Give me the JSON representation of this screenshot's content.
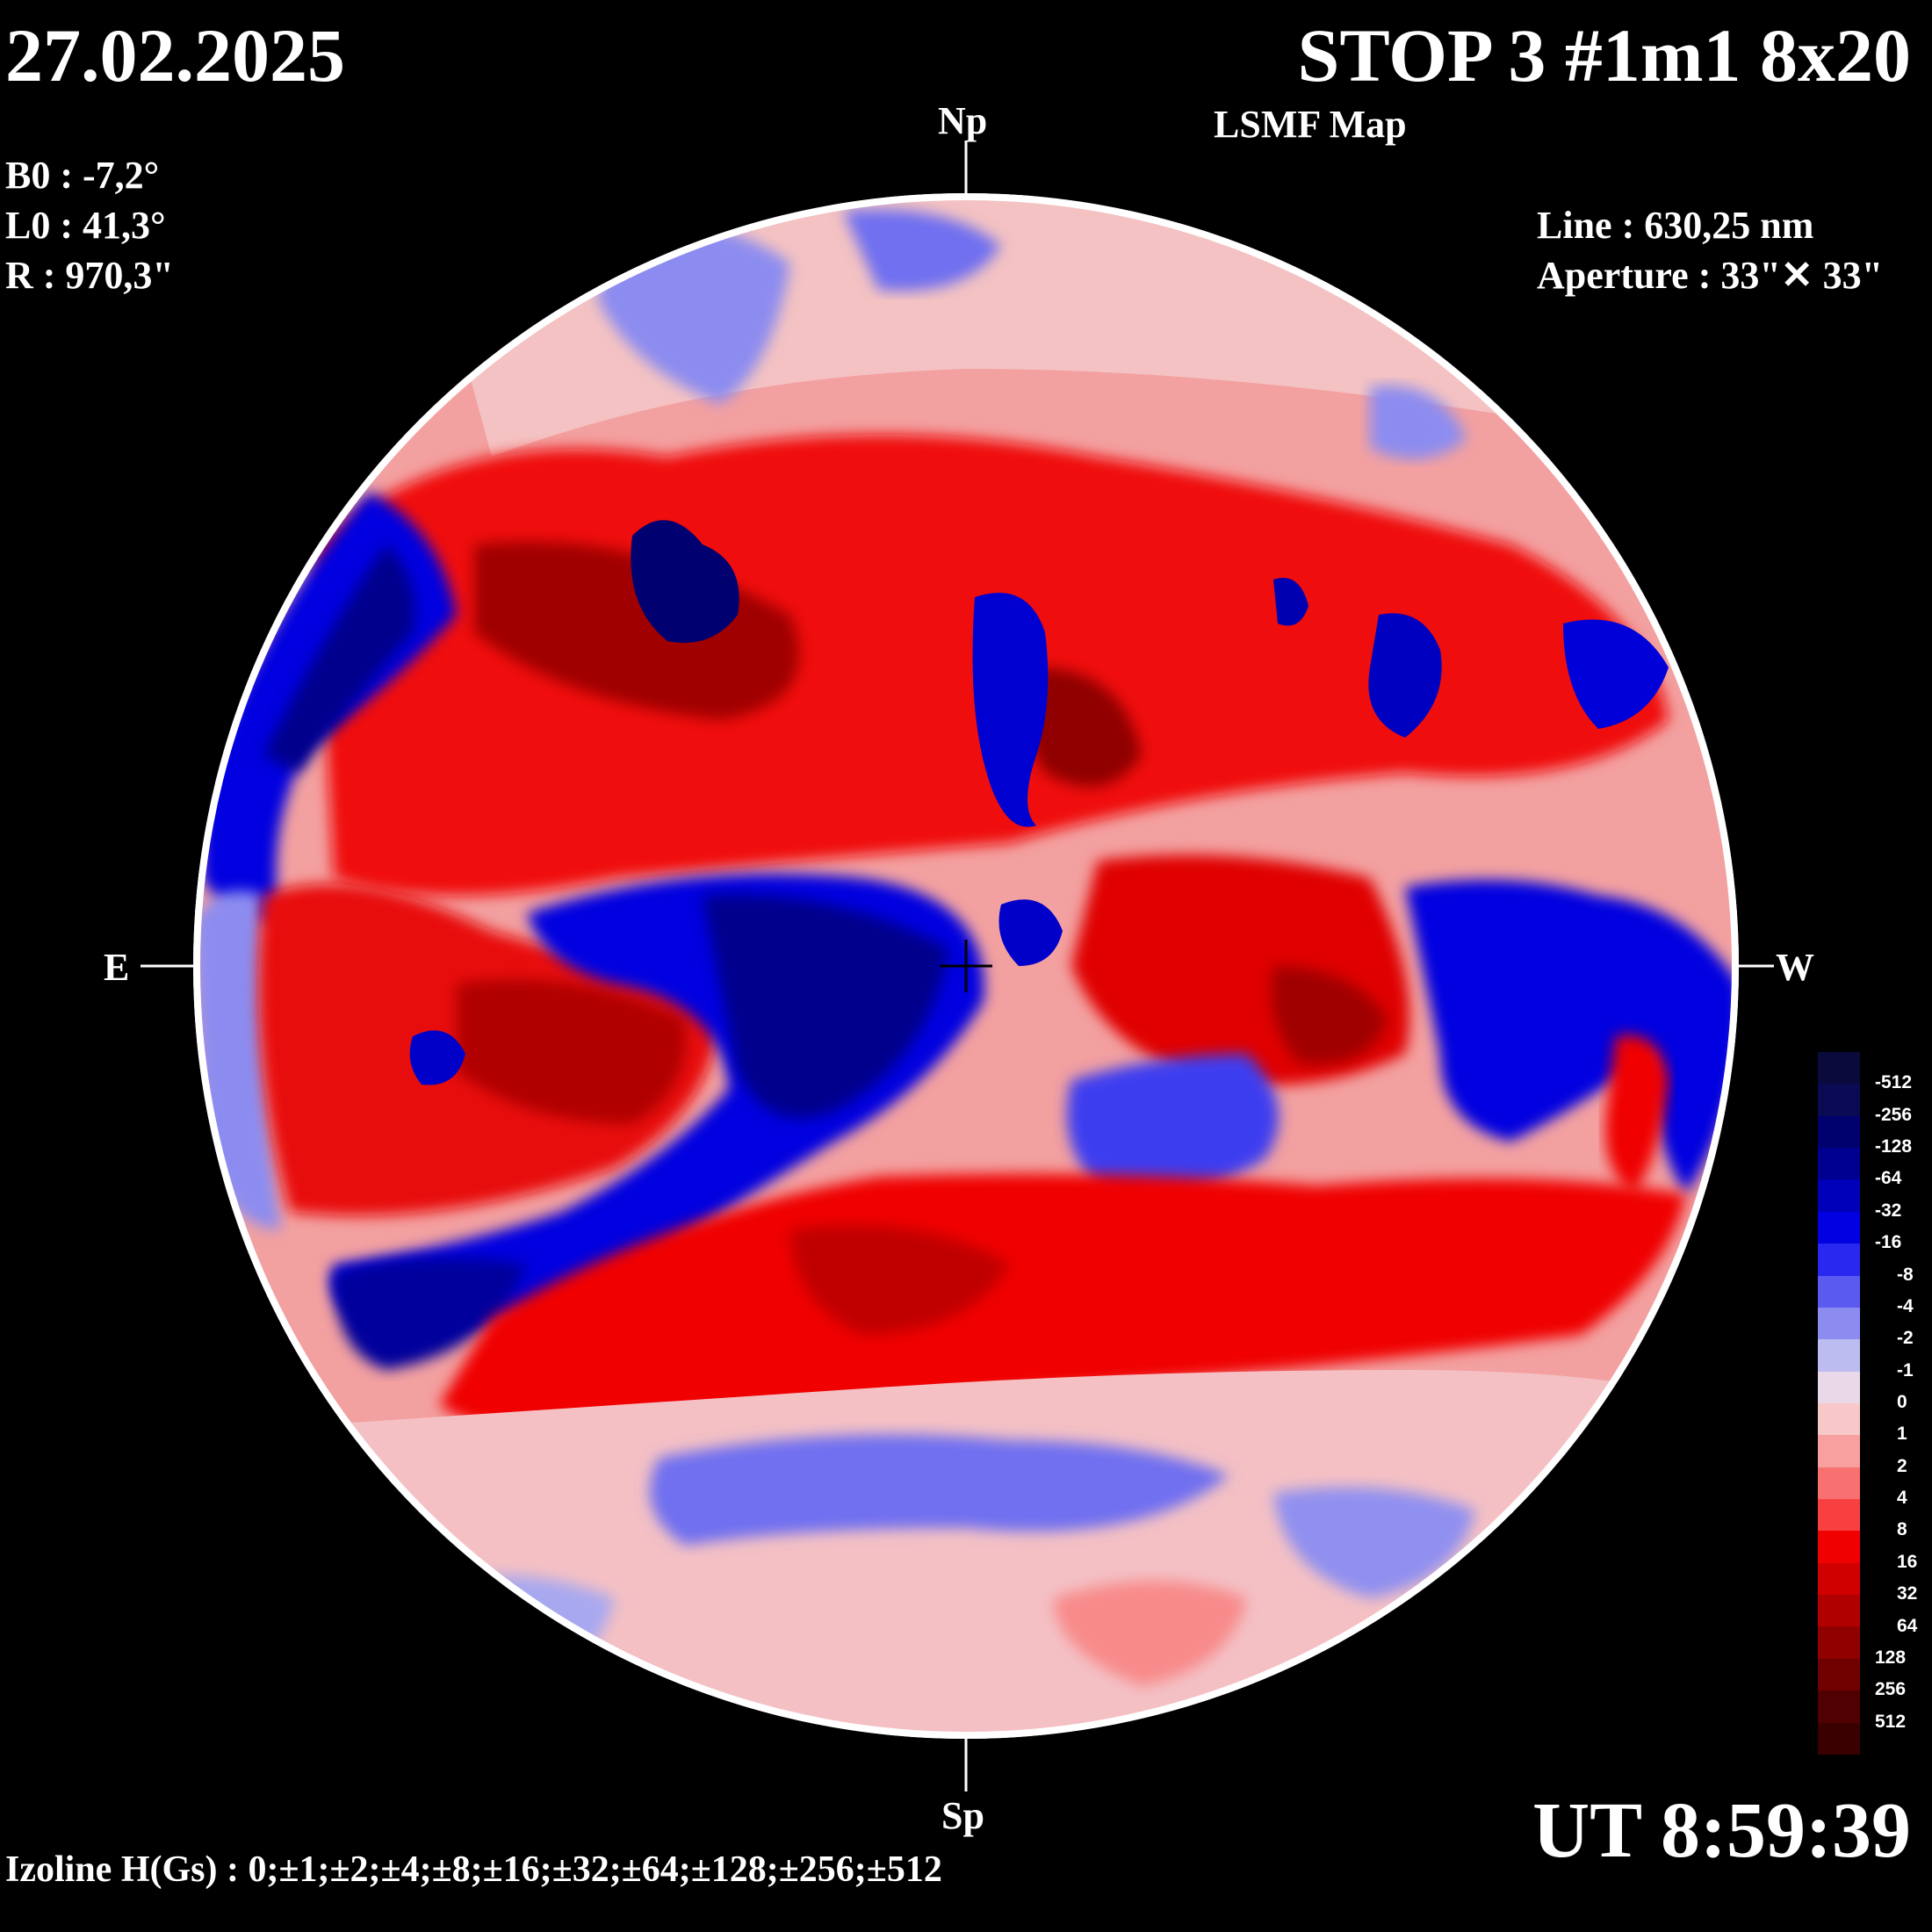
{
  "header": {
    "date": "27.02.2025",
    "title": "STOP 3 #1m1 8x20",
    "subtitle": "LSMF  Map"
  },
  "params": {
    "b0": "B0 : -7,2°",
    "l0": "L0 : 41,3°",
    "r": "R  : 970,3\""
  },
  "instrument": {
    "line": "Line :  630,25 nm",
    "aperture": "Aperture : 33\"✕ 33\""
  },
  "compass": {
    "north": "Np",
    "south": "Sp",
    "east": "E",
    "west": "W"
  },
  "time": "UT 8:59:39",
  "izoline": "Izoline H(Gs) : 0;±1;±2;±4;±8;±16;±32;±64;±128;±256;±512",
  "colorbar": {
    "labels": [
      "-512",
      "-256",
      "-128",
      "-64",
      "-32",
      "-16",
      "-8",
      "-4",
      "-2",
      "-1",
      "0",
      "1",
      "2",
      "4",
      "8",
      "16",
      "32",
      "64",
      "128",
      "256",
      "512"
    ],
    "colors": [
      "#0a0a3c",
      "#0a0a55",
      "#00006e",
      "#000090",
      "#0000b8",
      "#0000e0",
      "#2828f0",
      "#5a5af0",
      "#8c8cf0",
      "#bcbcf0",
      "#e8d8e8",
      "#f8c8c8",
      "#f8a0a0",
      "#f87070",
      "#f84040",
      "#f00000",
      "#d00000",
      "#b00000",
      "#900000",
      "#700000",
      "#500000",
      "#3a0000"
    ]
  },
  "map_colors": {
    "strong_negative": "#00008c",
    "negative": "#0000e0",
    "weak_negative": "#8c8cf0",
    "neutral_negative": "#c8c8f0",
    "neutral_positive": "#f8c8c8",
    "weak_positive": "#f88080",
    "positive": "#f00000",
    "strong_positive": "#a00000"
  }
}
